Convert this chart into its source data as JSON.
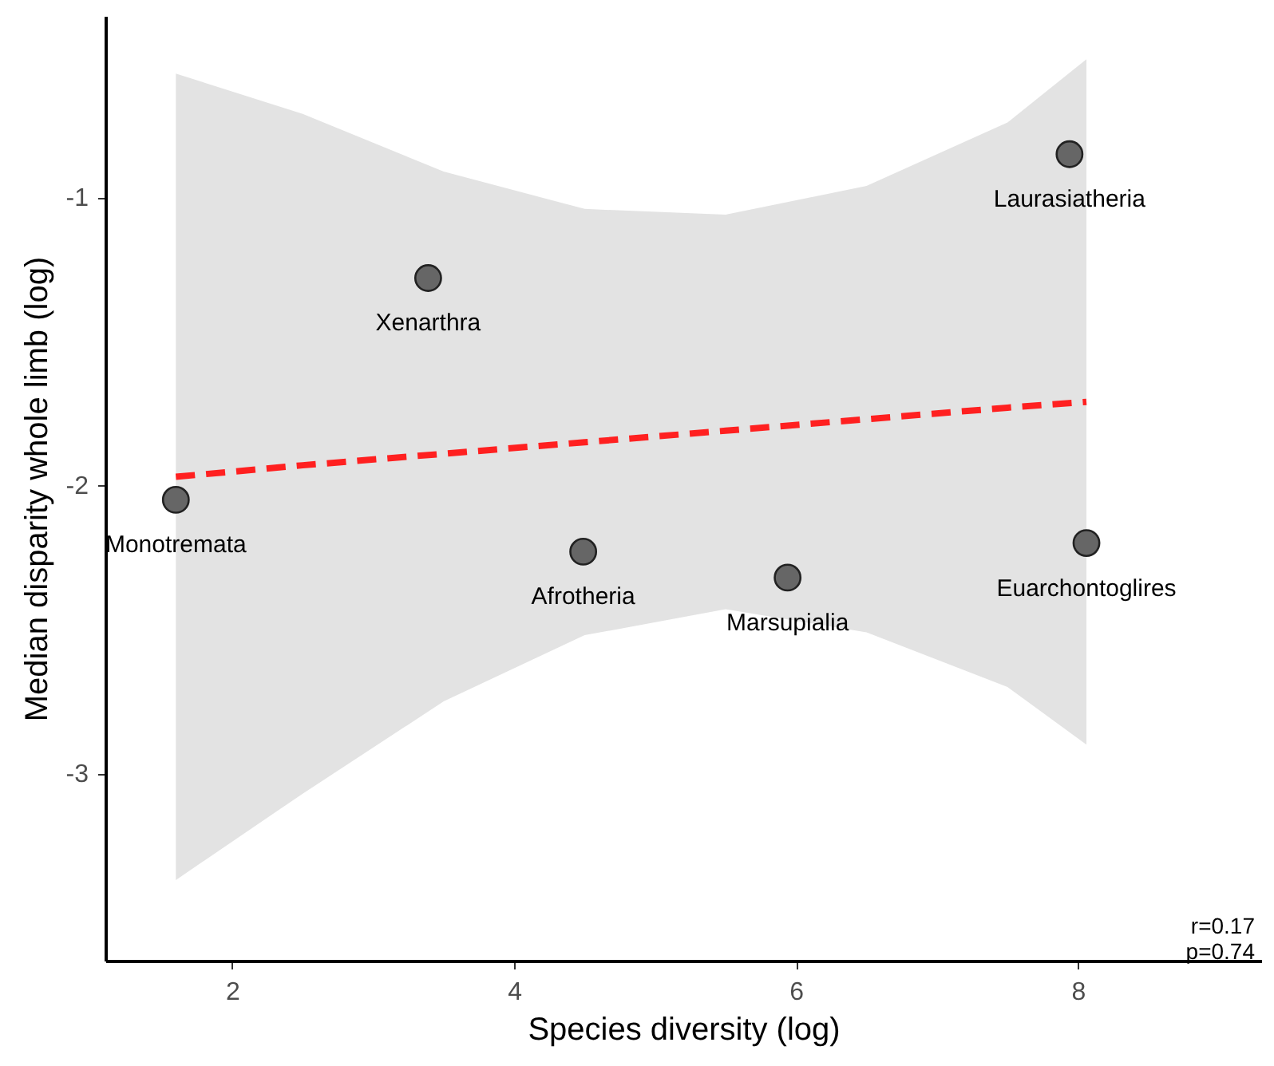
{
  "chart_data": {
    "type": "scatter",
    "xlabel": "Species diversity (log)",
    "ylabel": "Median disparity whole limb (log)",
    "xlim": [
      1.1,
      9.3
    ],
    "ylim": [
      -3.65,
      -0.37
    ],
    "xticks": [
      2,
      4,
      6,
      8
    ],
    "yticks": [
      -1,
      -2,
      -3
    ],
    "grid": false,
    "series": [
      {
        "type": "scatter",
        "color": "#666666",
        "marker": "circle",
        "x": [
          1.6,
          3.39,
          4.49,
          5.94,
          7.94,
          8.06
        ],
        "values": [
          -2.05,
          -1.28,
          -2.23,
          -2.32,
          -0.85,
          -2.2
        ]
      },
      {
        "type": "line",
        "color": "#ff2020",
        "line_style": "dashed",
        "x": [
          1.6,
          2.5,
          3.5,
          4.5,
          5.5,
          6.5,
          7.5,
          8.06
        ],
        "values": [
          -1.97,
          -1.93,
          -1.89,
          -1.85,
          -1.81,
          -1.77,
          -1.73,
          -1.71
        ],
        "lower": [
          -3.37,
          -3.07,
          -2.75,
          -2.52,
          -2.43,
          -2.51,
          -2.7,
          -2.9
        ],
        "upper": [
          -0.57,
          -0.71,
          -0.91,
          -1.04,
          -1.06,
          -0.96,
          -0.74,
          -0.52
        ]
      }
    ],
    "annotations": [
      {
        "text": "Monotremata",
        "x": 1.6,
        "y": -2.05
      },
      {
        "text": "Xenarthra",
        "x": 3.39,
        "y": -1.28
      },
      {
        "text": "Afrotheria",
        "x": 4.49,
        "y": -2.23
      },
      {
        "text": "Marsupialia",
        "x": 5.94,
        "y": -2.32
      },
      {
        "text": "Laurasiatheria",
        "x": 7.94,
        "y": -0.85
      },
      {
        "text": "Euarchontoglires",
        "x": 8.06,
        "y": -2.2
      },
      "r=0.17",
      "p=0.74"
    ]
  }
}
